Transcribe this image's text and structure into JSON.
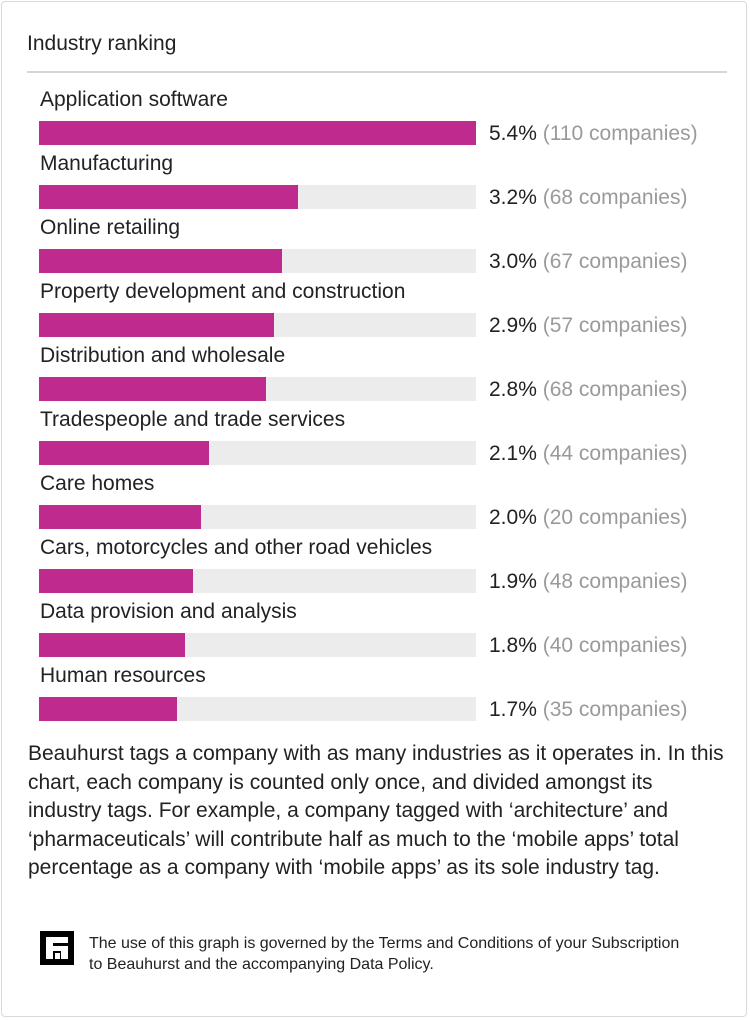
{
  "panel": {
    "title": "Industry ranking",
    "note": "Beauhurst tags a company with as many industries as it operates in. In this chart, each company is counted only once, and divided amongst its industry tags. For example, a company tagged with ‘architecture’ and ‘pharmaceuticals’ will contribute half as much to the ‘mobile apps’ total percentage as a company with ‘mobile apps’ as its sole industry tag.",
    "footer": "The use of this graph is governed by the Terms and Conditions of your Subscription to Beauhurst and the accompanying Data Policy.",
    "logo_icon": "beauhurst-logo-icon"
  },
  "chart_data": {
    "type": "bar",
    "orientation": "horizontal",
    "title": "Industry ranking",
    "categories": [
      "Application software",
      "Manufacturing",
      "Online retailing",
      "Property development and construction",
      "Distribution and wholesale",
      "Tradespeople and trade services",
      "Care homes",
      "Cars, motorcycles and other road vehicles",
      "Data provision and analysis",
      "Human resources"
    ],
    "values": [
      5.4,
      3.2,
      3.0,
      2.9,
      2.8,
      2.1,
      2.0,
      1.9,
      1.8,
      1.7
    ],
    "value_labels": [
      "5.4%",
      "3.2%",
      "3.0%",
      "2.9%",
      "2.8%",
      "2.1%",
      "2.0%",
      "1.9%",
      "1.8%",
      "1.7%"
    ],
    "count_labels": [
      "(110 companies)",
      "(68 companies)",
      "(67 companies)",
      "(57 companies)",
      "(68 companies)",
      "(44 companies)",
      "(20 companies)",
      "(48 companies)",
      "(40 companies)",
      "(35 companies)"
    ],
    "xlim": [
      0,
      5.4
    ],
    "grid": false,
    "bar_color": "#bf2a8e",
    "track_color": "#ececec"
  }
}
